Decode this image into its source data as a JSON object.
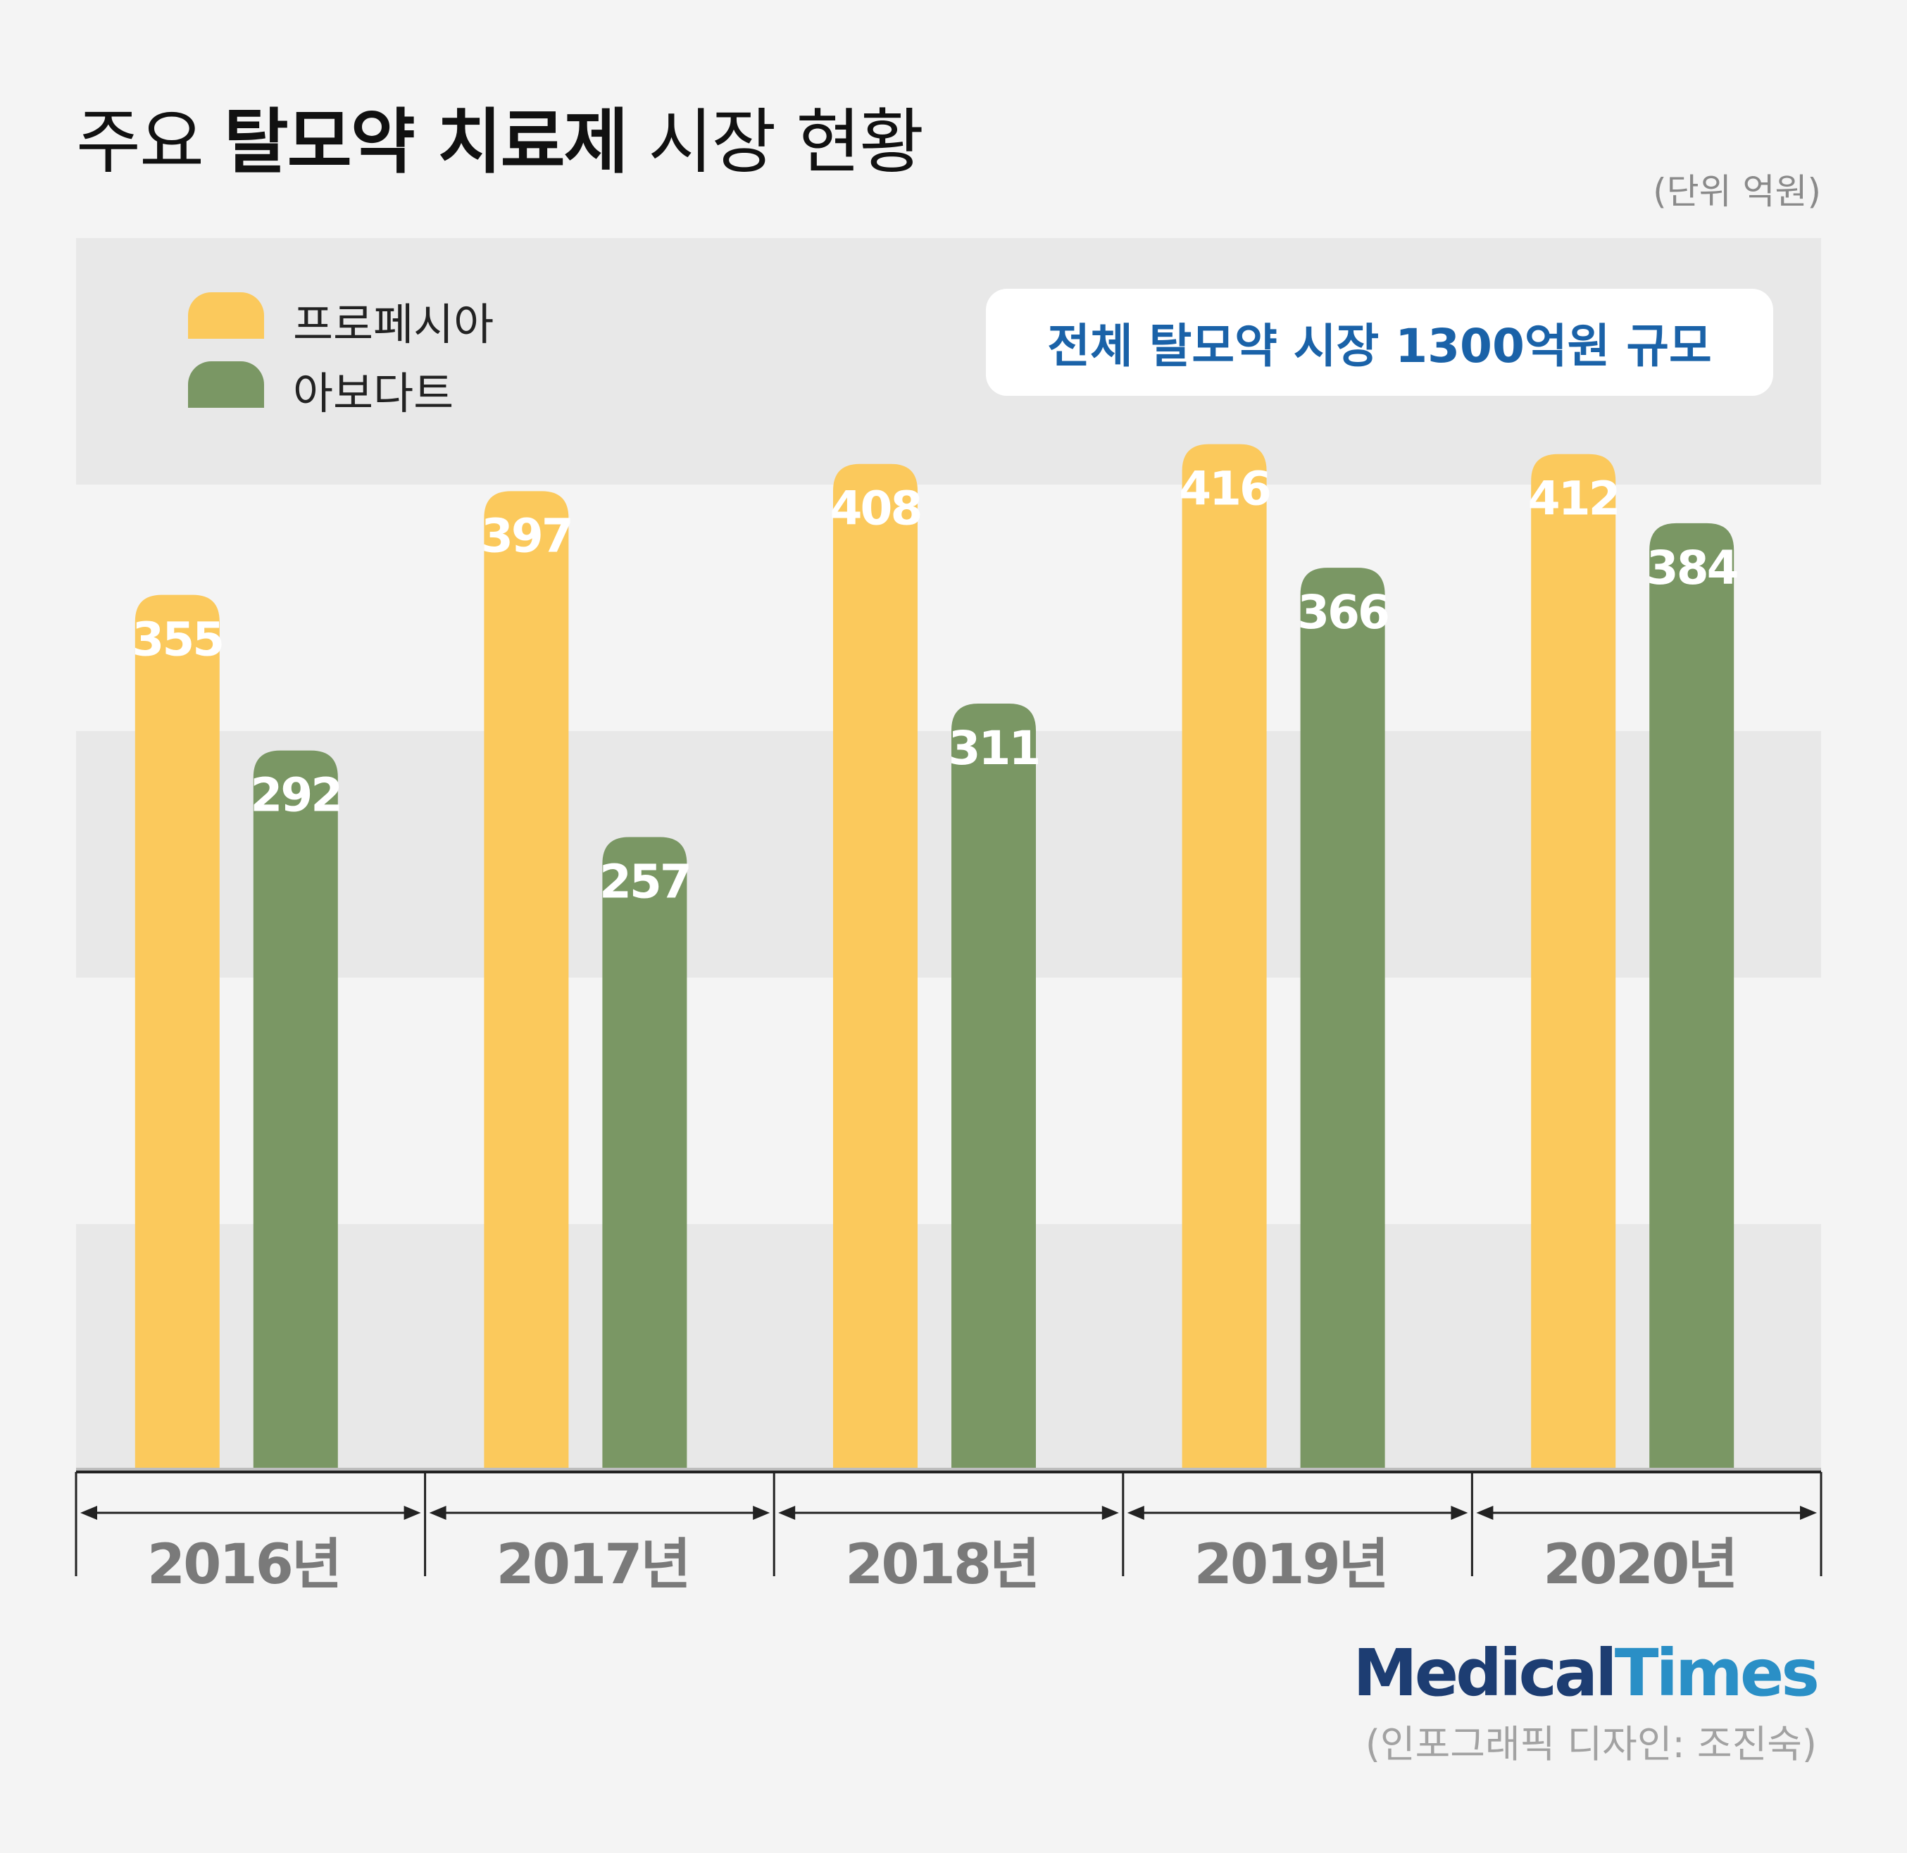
{
  "title": {
    "part1": "주요 ",
    "part2": "탈모약 치료제",
    "part3": " 시장 현황"
  },
  "unit_label": "(단위 억원)",
  "callout": "전체 탈모약 시장 1300억원 규모",
  "legend": [
    {
      "name": "프로페시아",
      "color": "#fbc95c"
    },
    {
      "name": "아보다트",
      "color": "#7a9764"
    }
  ],
  "chart_data": {
    "type": "bar",
    "categories": [
      "2016년",
      "2017년",
      "2018년",
      "2019년",
      "2020년"
    ],
    "series": [
      {
        "name": "프로페시아",
        "color": "#fbc95c",
        "values": [
          355,
          397,
          408,
          416,
          412
        ]
      },
      {
        "name": "아보다트",
        "color": "#7a9764",
        "values": [
          292,
          257,
          311,
          366,
          384
        ]
      }
    ],
    "ylim": [
      0,
      500
    ],
    "grid": "alternating horizontal bands",
    "legend_position": "top-left",
    "data_labels": "inside-top"
  },
  "colors": {
    "band_dark": "#e8e8e8",
    "band_light": "#f4f4f4",
    "value_label": "#ffffff",
    "year_label": "#7a7a7a",
    "callout_text": "#1a62a8"
  },
  "logo": {
    "part1": "Medical",
    "part2": "Times"
  },
  "credit": "(인포그래픽 디자인: 조진숙)"
}
